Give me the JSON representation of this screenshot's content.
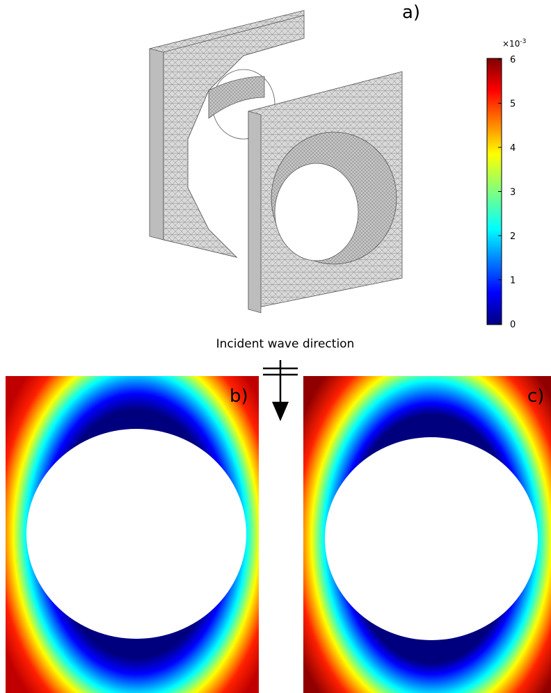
{
  "panel_labels": [
    "a)",
    "b)",
    "c)"
  ],
  "caption": "Incident wave direction",
  "colorbar": {
    "multiplier": "×10",
    "exponent": "-3",
    "lim": [
      0,
      6
    ],
    "ticks": [
      0,
      1,
      2,
      3,
      4,
      5,
      6
    ]
  }
}
